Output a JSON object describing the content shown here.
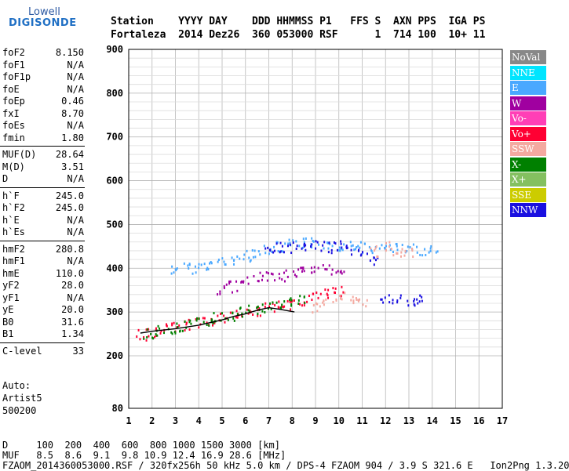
{
  "logo": {
    "line1": "Lowell",
    "line2": "DIGISONDE"
  },
  "header": {
    "labels": "Station    YYYY DAY    DDD HHMMSS P1   FFS S  AXN PPS  IGA PS",
    "values": "Fortaleza  2014 Dez26  360 053000 RSF      1  714 100  10+ 11"
  },
  "parameters": [
    {
      "name": "foF2",
      "value": "8.150"
    },
    {
      "name": "foF1",
      "value": "N/A"
    },
    {
      "name": "foF1p",
      "value": "N/A"
    },
    {
      "name": "foE",
      "value": "N/A"
    },
    {
      "name": "foEp",
      "value": "0.46"
    },
    {
      "name": "fxI",
      "value": "8.70"
    },
    {
      "name": "foEs",
      "value": "N/A"
    },
    {
      "name": "fmin",
      "value": "1.80"
    },
    {
      "name": "MUF(D)",
      "value": "28.64"
    },
    {
      "name": "M(D)",
      "value": "3.51"
    },
    {
      "name": "D",
      "value": "N/A"
    },
    {
      "name": "h`F",
      "value": "245.0"
    },
    {
      "name": "h`F2",
      "value": "245.0"
    },
    {
      "name": "h`E",
      "value": "N/A"
    },
    {
      "name": "h`Es",
      "value": "N/A"
    },
    {
      "name": "hmF2",
      "value": "280.8"
    },
    {
      "name": "hmF1",
      "value": "N/A"
    },
    {
      "name": "hmE",
      "value": "110.0"
    },
    {
      "name": "yF2",
      "value": "28.0"
    },
    {
      "name": "yF1",
      "value": "N/A"
    },
    {
      "name": "yE",
      "value": "20.0"
    },
    {
      "name": "B0",
      "value": "31.6"
    },
    {
      "name": "B1",
      "value": "1.34"
    },
    {
      "name": "C-level",
      "value": "33"
    }
  ],
  "autoscaling": {
    "line1": "Auto:",
    "line2": "Artist5",
    "line3": "500200"
  },
  "legend": [
    {
      "label": "NoVal",
      "color": "#888888"
    },
    {
      "label": "NNE",
      "color": "#00e5ff"
    },
    {
      "label": "E",
      "color": "#4aa8ff"
    },
    {
      "label": "W",
      "color": "#a000a0"
    },
    {
      "label": "Vo-",
      "color": "#ff3fb6"
    },
    {
      "label": "Vo+",
      "color": "#ff0033"
    },
    {
      "label": "SSW",
      "color": "#f4a9a0"
    },
    {
      "label": "X-",
      "color": "#008000"
    },
    {
      "label": "X+",
      "color": "#84c060"
    },
    {
      "label": "SSE",
      "color": "#cccc00"
    },
    {
      "label": "NNW",
      "color": "#1a10e0"
    }
  ],
  "chart_data": {
    "type": "scatter",
    "x_ticks": [
      "1",
      "2",
      "3",
      "4",
      "5",
      "6",
      "7",
      "8",
      "9",
      "10",
      "11",
      "12",
      "13",
      "14",
      "15",
      "16",
      "17"
    ],
    "y_ticks": [
      "80",
      "200",
      "300",
      "400",
      "500",
      "600",
      "700",
      "800",
      "900"
    ],
    "xlim": [
      1,
      17
    ],
    "grid": true,
    "series": [
      {
        "name": "E",
        "x": [
          3.0,
          3.5,
          4.0,
          4.5,
          5.0,
          5.5,
          6.0,
          6.5,
          7.0,
          7.5,
          8.0,
          8.5,
          9.0,
          9.5,
          10.0,
          10.5,
          11.0,
          11.5,
          12.0,
          12.5,
          13.0,
          13.5,
          14.0
        ],
        "y": [
          400,
          402,
          405,
          410,
          415,
          420,
          430,
          440,
          445,
          450,
          455,
          460,
          460,
          458,
          455,
          452,
          450,
          448,
          447,
          446,
          445,
          444,
          444
        ]
      },
      {
        "name": "NNW",
        "x": [
          7.0,
          7.5,
          8.0,
          8.5,
          9.0,
          9.5,
          10.0,
          10.5,
          11.0,
          11.5,
          12.0,
          12.5,
          13.0,
          13.5
        ],
        "y": [
          445,
          450,
          450,
          448,
          452,
          450,
          455,
          445,
          440,
          420,
          330,
          330,
          325,
          330
        ]
      },
      {
        "name": "W",
        "x": [
          5.0,
          5.5,
          6.0,
          6.5,
          7.0,
          7.5,
          8.0,
          8.5,
          9.0,
          9.5,
          10.0
        ],
        "y": [
          355,
          360,
          372,
          380,
          385,
          385,
          390,
          395,
          395,
          400,
          400
        ]
      },
      {
        "name": "Vo+",
        "x": [
          1.5,
          2.0,
          2.5,
          3.0,
          3.5,
          4.0,
          4.5,
          5.0,
          5.5,
          6.0,
          6.5,
          7.0,
          7.5,
          8.0,
          8.5,
          9.0,
          9.5,
          10.0
        ],
        "y": [
          250,
          256,
          262,
          268,
          272,
          278,
          284,
          290,
          296,
          300,
          305,
          310,
          315,
          320,
          330,
          340,
          345,
          350
        ]
      },
      {
        "name": "X-",
        "x": [
          1.8,
          2.3,
          2.8,
          3.3,
          3.8,
          4.3,
          4.8,
          5.3,
          5.8,
          6.3,
          6.8,
          7.3,
          7.8,
          8.3
        ],
        "y": [
          252,
          258,
          264,
          270,
          276,
          282,
          288,
          294,
          300,
          306,
          312,
          318,
          324,
          330
        ]
      },
      {
        "name": "SSW",
        "x": [
          9.0,
          9.5,
          10.0,
          10.5,
          11.0,
          11.5,
          12.0,
          12.5,
          13.0
        ],
        "y": [
          310,
          320,
          340,
          330,
          320,
          440,
          450,
          440,
          435
        ]
      }
    ],
    "traces": [
      {
        "name": "profile",
        "x": [
          1.5,
          2,
          3,
          4,
          5,
          5.5,
          6,
          6.5,
          7,
          7.5,
          8.1
        ],
        "y": [
          252,
          256,
          262,
          270,
          282,
          290,
          296,
          304,
          310,
          306,
          300
        ]
      }
    ]
  },
  "footer": {
    "line1": "D     100  200  400  600  800 1000 1500 3000 [km]",
    "line2": "MUF   8.5  8.6  9.1  9.8 10.9 12.4 16.9 28.6 [MHz]",
    "line3": "FZAOM_2014360053000.RSF / 320fx256h 50 kHz 5.0 km / DPS-4 FZAOM 904 / 3.9 S 321.6 E   Ion2Png 1.3.20"
  }
}
